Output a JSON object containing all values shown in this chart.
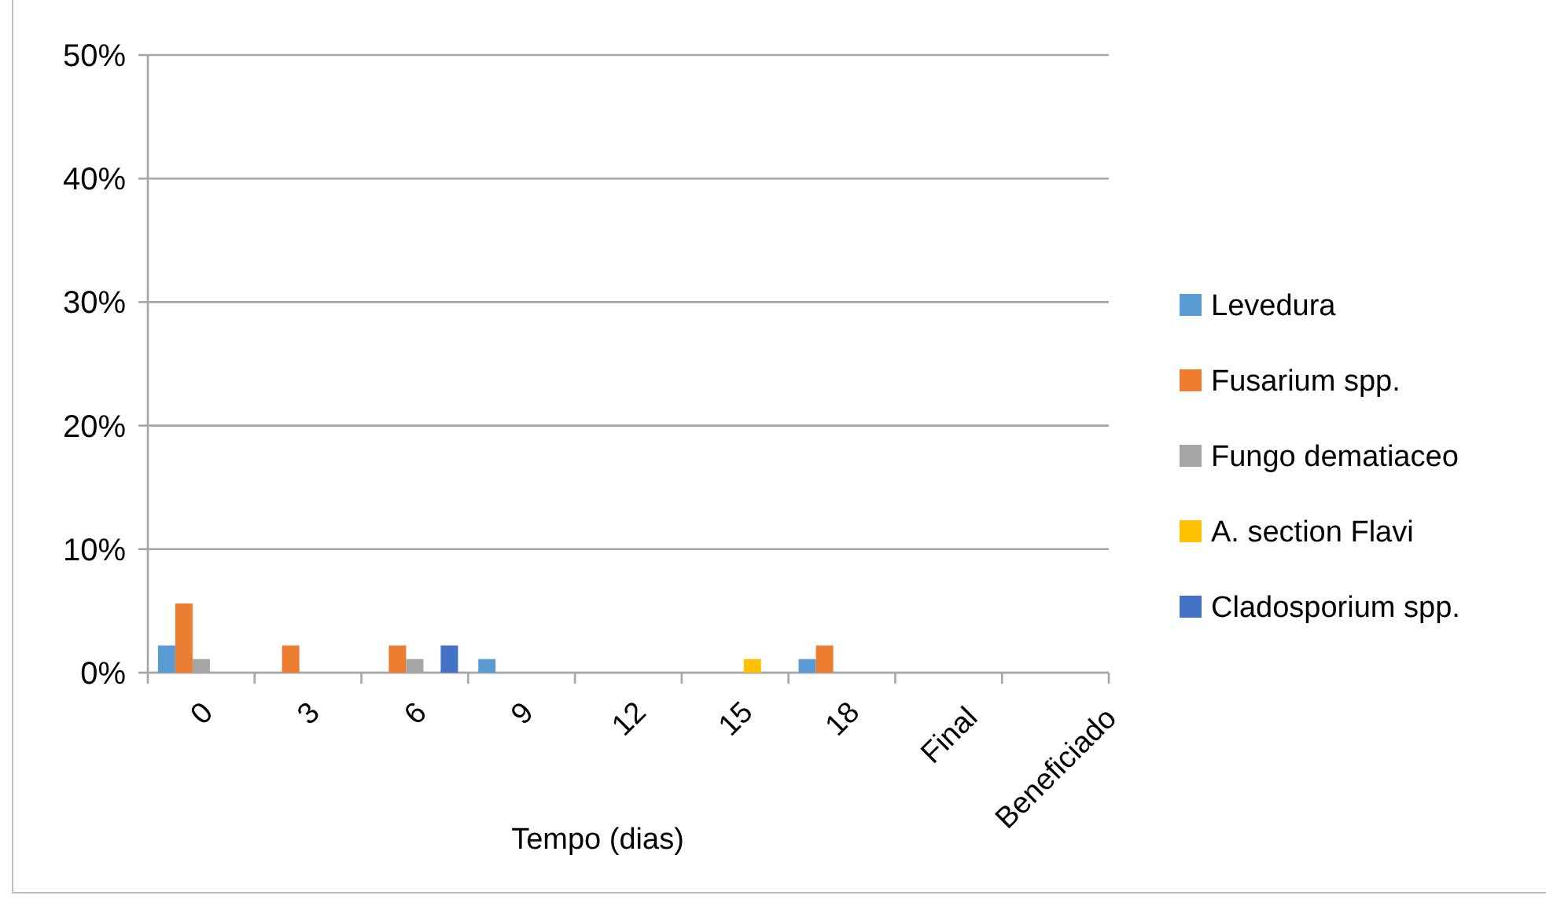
{
  "chart_data": {
    "type": "bar",
    "xlabel": "Tempo (dias)",
    "categories": [
      "0",
      "3",
      "6",
      "9",
      "12",
      "15",
      "18",
      "Final",
      "Beneficiado"
    ],
    "series": [
      {
        "name": "Levedura",
        "color": "#5b9bd5",
        "values": [
          2.2,
          0,
          0,
          1.1,
          0,
          0,
          1.1,
          0,
          0
        ]
      },
      {
        "name": "Fusarium spp.",
        "color": "#ed7d31",
        "values": [
          5.6,
          2.2,
          2.2,
          0,
          0,
          0,
          2.2,
          0,
          0
        ]
      },
      {
        "name": "Fungo dematiaceo",
        "color": "#a5a5a5",
        "values": [
          1.1,
          0,
          1.1,
          0,
          0,
          0,
          0,
          0,
          0
        ]
      },
      {
        "name": "A. section Flavi",
        "color": "#ffc000",
        "values": [
          0,
          0,
          0,
          0,
          0,
          1.1,
          0,
          0,
          0
        ]
      },
      {
        "name": "Cladosporium spp.",
        "color": "#4472c4",
        "values": [
          0,
          0,
          2.2,
          0,
          0,
          0,
          0,
          0,
          0
        ]
      }
    ],
    "ylim": [
      0,
      50
    ],
    "yticks": [
      {
        "value": 0,
        "label": "0%"
      },
      {
        "value": 10,
        "label": "10%"
      },
      {
        "value": 20,
        "label": "20%"
      },
      {
        "value": 30,
        "label": "30%"
      },
      {
        "value": 40,
        "label": "40%"
      },
      {
        "value": 50,
        "label": "50%"
      }
    ],
    "grid": "y",
    "legend": "right"
  }
}
